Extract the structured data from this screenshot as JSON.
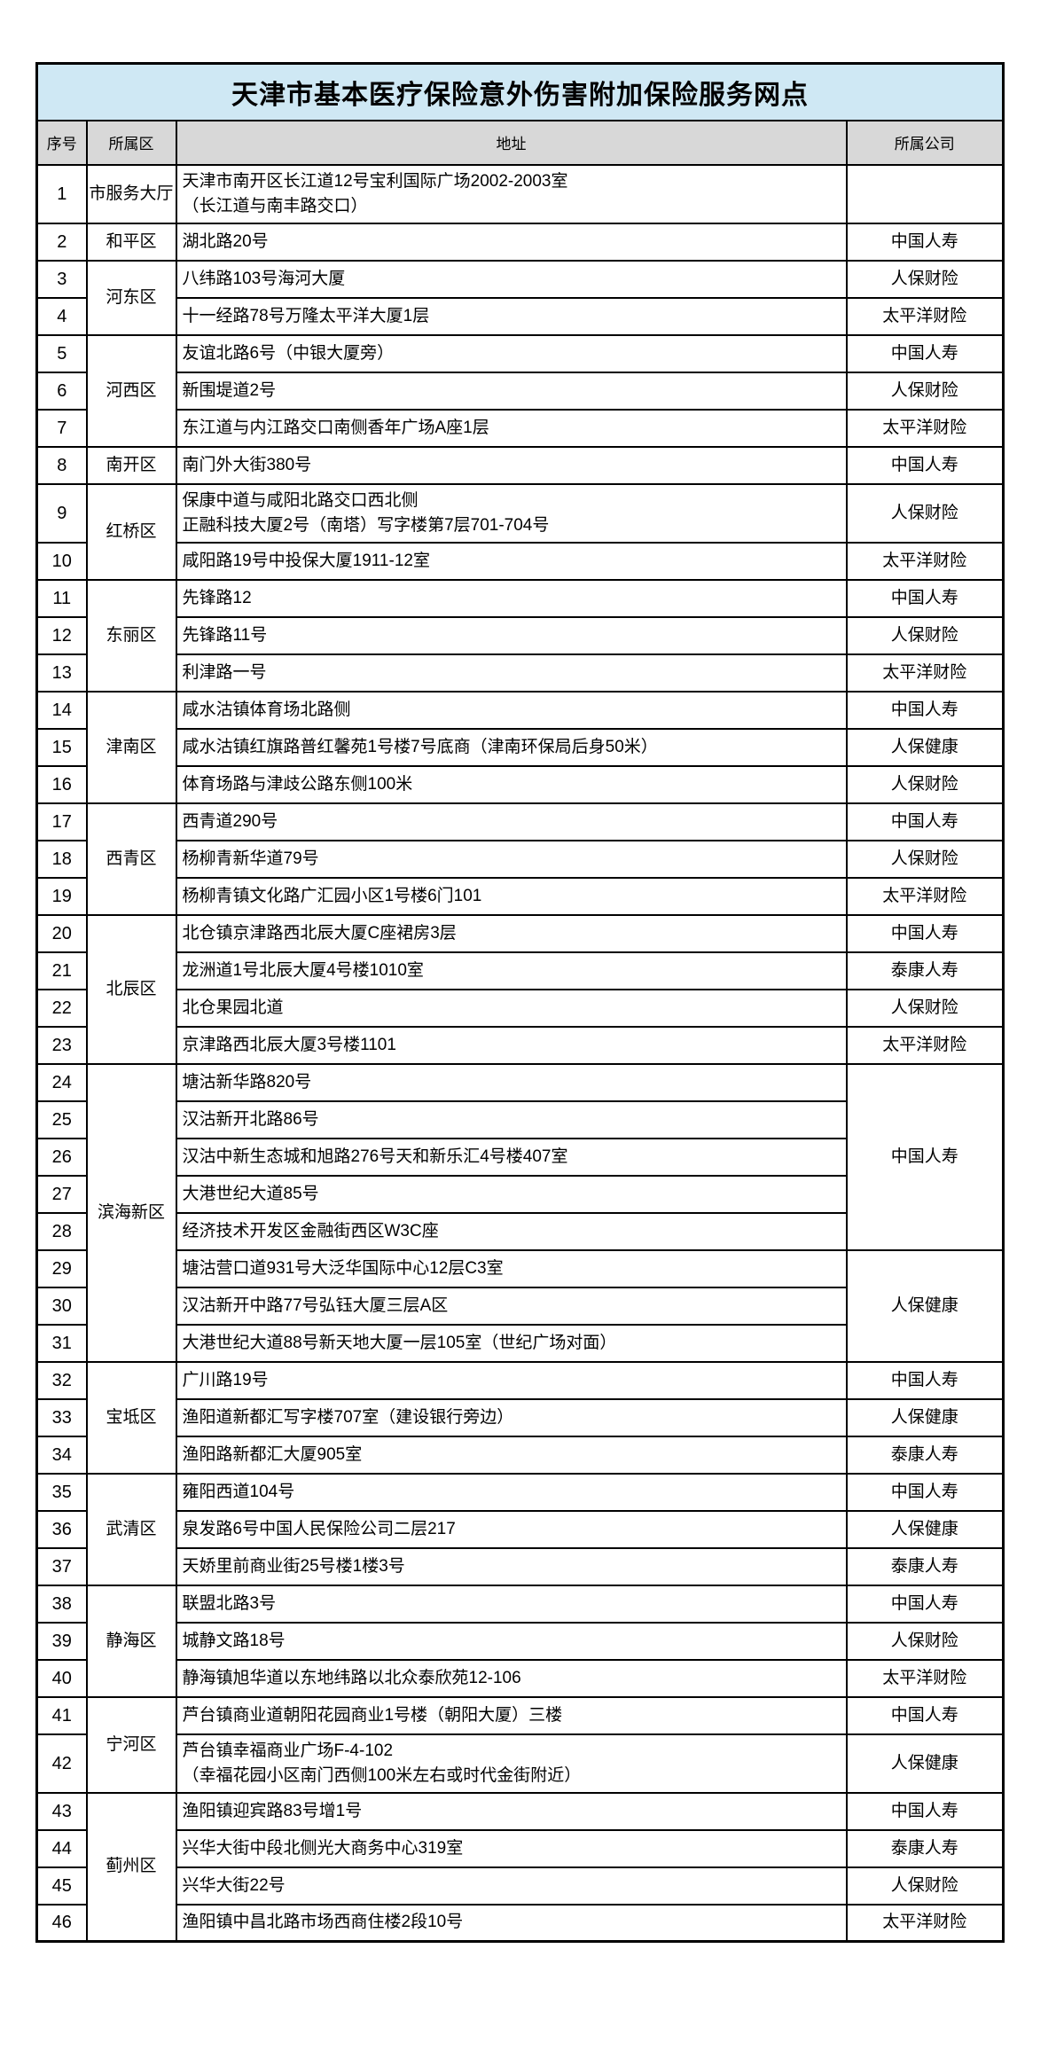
{
  "title": "天津市基本医疗保险意外伤害附加保险服务网点",
  "columns": [
    {
      "label": "序号"
    },
    {
      "label": "所属区"
    },
    {
      "label": "地址"
    },
    {
      "label": "所属公司"
    }
  ],
  "colors": {
    "title_bg": "#cfe8f4",
    "header_bg": "#d8d8d8",
    "border": "#000000"
  },
  "rows": [
    {
      "no": "1",
      "district": "市服务大厅",
      "districtSpan": 1,
      "address": "天津市南开区长江道12号宝利国际广场2002-2003室\n（长江道与南丰路交口）",
      "company": "",
      "companySpan": 1
    },
    {
      "no": "2",
      "district": "和平区",
      "districtSpan": 1,
      "address": "湖北路20号",
      "company": "中国人寿",
      "companySpan": 1
    },
    {
      "no": "3",
      "district": "河东区",
      "districtSpan": 2,
      "address": "八纬路103号海河大厦",
      "company": "人保财险",
      "companySpan": 1
    },
    {
      "no": "4",
      "address": "十一经路78号万隆太平洋大厦1层",
      "company": "太平洋财险",
      "companySpan": 1
    },
    {
      "no": "5",
      "district": "河西区",
      "districtSpan": 3,
      "address": "友谊北路6号（中银大厦旁）",
      "company": "中国人寿",
      "companySpan": 1
    },
    {
      "no": "6",
      "address": "新围堤道2号",
      "company": "人保财险",
      "companySpan": 1
    },
    {
      "no": "7",
      "address": "东江道与内江路交口南侧香年广场A座1层",
      "company": "太平洋财险",
      "companySpan": 1
    },
    {
      "no": "8",
      "district": "南开区",
      "districtSpan": 1,
      "address": "南门外大街380号",
      "company": "中国人寿",
      "companySpan": 1
    },
    {
      "no": "9",
      "district": "红桥区",
      "districtSpan": 2,
      "address": "保康中道与咸阳北路交口西北侧\n正融科技大厦2号（南塔）写字楼第7层701-704号",
      "company": "人保财险",
      "companySpan": 1
    },
    {
      "no": "10",
      "address": "咸阳路19号中投保大厦1911-12室",
      "company": "太平洋财险",
      "companySpan": 1
    },
    {
      "no": "11",
      "district": "东丽区",
      "districtSpan": 3,
      "address": "先锋路12",
      "company": "中国人寿",
      "companySpan": 1
    },
    {
      "no": "12",
      "address": "先锋路11号",
      "company": "人保财险",
      "companySpan": 1
    },
    {
      "no": "13",
      "address": "利津路一号",
      "company": "太平洋财险",
      "companySpan": 1
    },
    {
      "no": "14",
      "district": "津南区",
      "districtSpan": 3,
      "address": "咸水沽镇体育场北路侧",
      "company": "中国人寿",
      "companySpan": 1
    },
    {
      "no": "15",
      "address": "咸水沽镇红旗路普红馨苑1号楼7号底商（津南环保局后身50米）",
      "company": "人保健康",
      "companySpan": 1
    },
    {
      "no": "16",
      "address": "体育场路与津歧公路东侧100米",
      "company": "人保财险",
      "companySpan": 1
    },
    {
      "no": "17",
      "district": "西青区",
      "districtSpan": 3,
      "address": "西青道290号",
      "company": "中国人寿",
      "companySpan": 1
    },
    {
      "no": "18",
      "address": "杨柳青新华道79号",
      "company": "人保财险",
      "companySpan": 1
    },
    {
      "no": "19",
      "address": "杨柳青镇文化路广汇园小区1号楼6门101",
      "company": "太平洋财险",
      "companySpan": 1
    },
    {
      "no": "20",
      "district": "北辰区",
      "districtSpan": 4,
      "address": "北仓镇京津路西北辰大厦C座裙房3层",
      "company": "中国人寿",
      "companySpan": 1
    },
    {
      "no": "21",
      "address": "龙洲道1号北辰大厦4号楼1010室",
      "company": "泰康人寿",
      "companySpan": 1
    },
    {
      "no": "22",
      "address": "北仓果园北道",
      "company": "人保财险",
      "companySpan": 1
    },
    {
      "no": "23",
      "address": "京津路西北辰大厦3号楼1101",
      "company": "太平洋财险",
      "companySpan": 1
    },
    {
      "no": "24",
      "district": "滨海新区",
      "districtSpan": 8,
      "address": "塘沽新华路820号",
      "company": "中国人寿",
      "companySpan": 5
    },
    {
      "no": "25",
      "address": "汉沽新开北路86号"
    },
    {
      "no": "26",
      "address": "汉沽中新生态城和旭路276号天和新乐汇4号楼407室"
    },
    {
      "no": "27",
      "address": "大港世纪大道85号"
    },
    {
      "no": "28",
      "address": "经济技术开发区金融街西区W3C座"
    },
    {
      "no": "29",
      "address": "塘沽营口道931号大泛华国际中心12层C3室",
      "company": "人保健康",
      "companySpan": 3
    },
    {
      "no": "30",
      "address": "汉沽新开中路77号弘钰大厦三层A区"
    },
    {
      "no": "31",
      "address": "大港世纪大道88号新天地大厦一层105室（世纪广场对面）"
    },
    {
      "no": "32",
      "district": "宝坻区",
      "districtSpan": 3,
      "address": "广川路19号",
      "company": "中国人寿",
      "companySpan": 1
    },
    {
      "no": "33",
      "address": "渔阳道新都汇写字楼707室（建设银行旁边）",
      "company": "人保健康",
      "companySpan": 1
    },
    {
      "no": "34",
      "address": "渔阳路新都汇大厦905室",
      "company": "泰康人寿",
      "companySpan": 1
    },
    {
      "no": "35",
      "district": "武清区",
      "districtSpan": 3,
      "address": "雍阳西道104号",
      "company": "中国人寿",
      "companySpan": 1
    },
    {
      "no": "36",
      "address": "泉发路6号中国人民保险公司二层217",
      "company": "人保健康",
      "companySpan": 1
    },
    {
      "no": "37",
      "address": "天娇里前商业街25号楼1楼3号",
      "company": "泰康人寿",
      "companySpan": 1
    },
    {
      "no": "38",
      "district": "静海区",
      "districtSpan": 3,
      "address": "联盟北路3号",
      "company": "中国人寿",
      "companySpan": 1
    },
    {
      "no": "39",
      "address": "城静文路18号",
      "company": "人保财险",
      "companySpan": 1
    },
    {
      "no": "40",
      "address": "静海镇旭华道以东地纬路以北众泰欣苑12-106",
      "company": "太平洋财险",
      "companySpan": 1
    },
    {
      "no": "41",
      "district": "宁河区",
      "districtSpan": 2,
      "address": "芦台镇商业道朝阳花园商业1号楼（朝阳大厦）三楼",
      "company": "中国人寿",
      "companySpan": 1
    },
    {
      "no": "42",
      "address": "芦台镇幸福商业广场F-4-102\n（幸福花园小区南门西侧100米左右或时代金街附近）",
      "company": "人保健康",
      "companySpan": 1
    },
    {
      "no": "43",
      "district": "蓟州区",
      "districtSpan": 4,
      "address": "渔阳镇迎宾路83号增1号",
      "company": "中国人寿",
      "companySpan": 1
    },
    {
      "no": "44",
      "address": "兴华大街中段北侧光大商务中心319室",
      "company": "泰康人寿",
      "companySpan": 1
    },
    {
      "no": "45",
      "address": "兴华大街22号",
      "company": "人保财险",
      "companySpan": 1
    },
    {
      "no": "46",
      "address": "渔阳镇中昌北路市场西商住楼2段10号",
      "company": "太平洋财险",
      "companySpan": 1
    }
  ]
}
